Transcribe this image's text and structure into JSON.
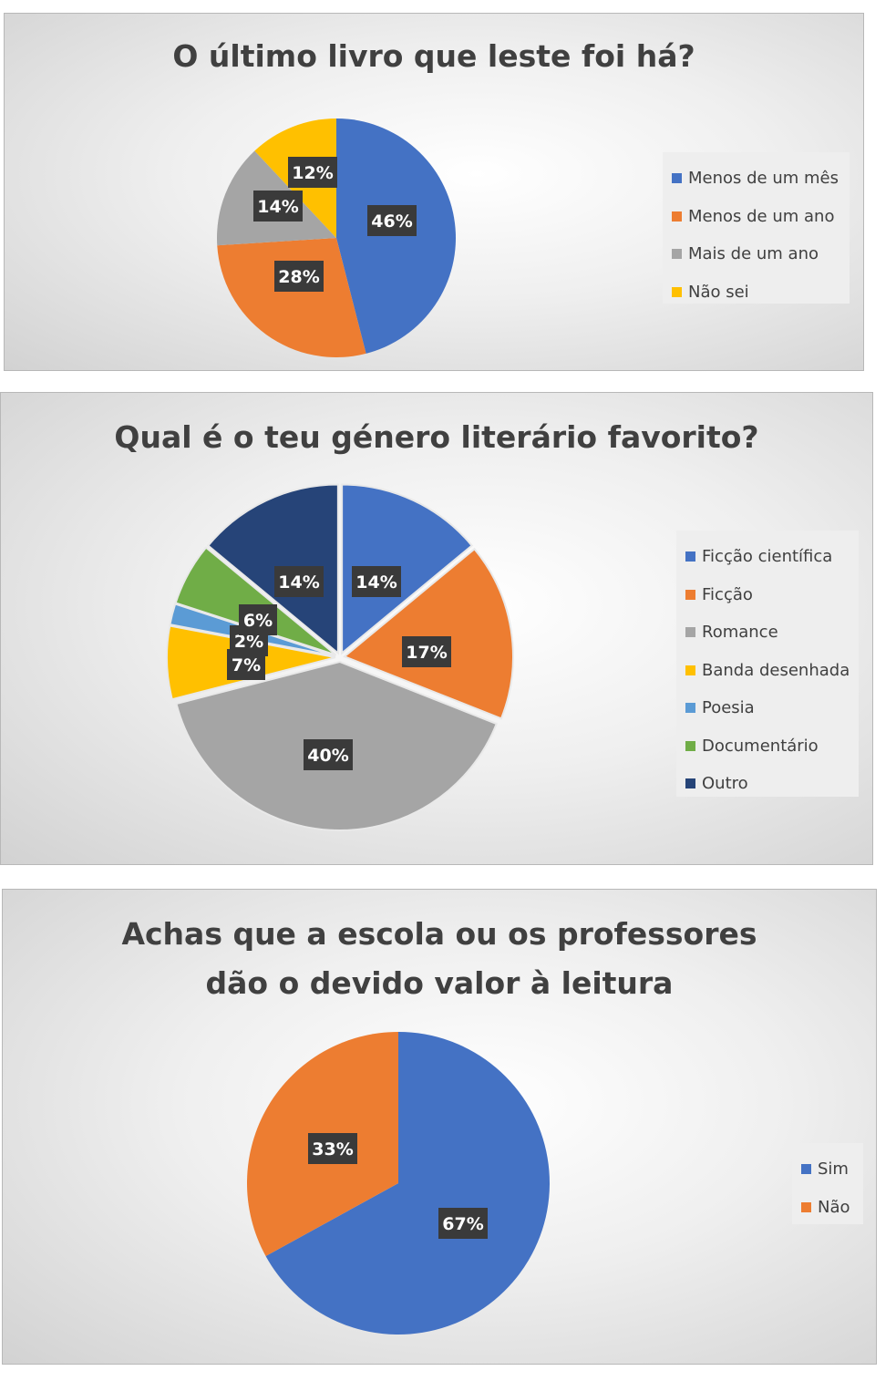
{
  "chart_data": [
    {
      "type": "pie",
      "title": "O último livro que leste foi há?",
      "categories": [
        "Menos de um mês",
        "Menos de um ano",
        "Mais de um ano",
        "Não sei"
      ],
      "values": [
        46,
        28,
        14,
        12
      ],
      "labels": [
        "46%",
        "28%",
        "14%",
        "12%"
      ],
      "colors": [
        "#4472C4",
        "#ED7D31",
        "#A5A5A5",
        "#FFC000"
      ],
      "legend": "right"
    },
    {
      "type": "pie",
      "title": "Qual é o teu género literário favorito?",
      "categories": [
        "Ficção científica",
        "Ficção",
        "Romance",
        "Banda desenhada",
        "Poesia",
        "Documentário",
        "Outro"
      ],
      "values": [
        14,
        17,
        40,
        7,
        2,
        6,
        14
      ],
      "labels": [
        "14%",
        "17%",
        "40%",
        "7%",
        "2%",
        "6%",
        "14%"
      ],
      "colors": [
        "#4472C4",
        "#ED7D31",
        "#A5A5A5",
        "#FFC000",
        "#5B9BD5",
        "#70AD47",
        "#264478"
      ],
      "legend": "right"
    },
    {
      "type": "pie",
      "title": [
        "Achas que a escola ou os professores",
        "dão o devido valor à leitura"
      ],
      "categories": [
        "Sim",
        "Não"
      ],
      "values": [
        67,
        33
      ],
      "labels": [
        "67%",
        "33%"
      ],
      "colors": [
        "#4472C4",
        "#ED7D31"
      ],
      "legend": "right"
    }
  ]
}
